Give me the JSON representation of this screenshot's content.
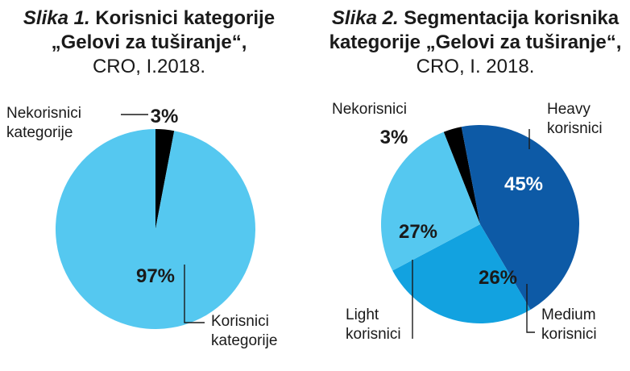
{
  "chart_data": [
    {
      "type": "pie",
      "title_italic": "Slika 1.",
      "title": "Korisnici kategorije",
      "title_line2": "„Gelovi za tuširanje“,",
      "subtitle": "CRO, I.2018.",
      "slices": [
        {
          "label": "Nekorisnici kategorije",
          "value": 3,
          "value_label": "3%",
          "color": "#000000",
          "text_color": "#1a1a1a"
        },
        {
          "label": "Korisnici kategorije",
          "value": 97,
          "value_label": "97%",
          "color": "#55c8f0",
          "text_color": "#1a1a1a"
        }
      ]
    },
    {
      "type": "pie",
      "title_italic": "Slika 2.",
      "title": "Segmentacija korisnika",
      "title_line2": "kategorije „Gelovi za tuširanje“,",
      "subtitle": "CRO, I. 2018.",
      "slices": [
        {
          "label": "Nekorisnici",
          "value": 3,
          "value_label": "3%",
          "color": "#000000",
          "text_color": "#1a1a1a"
        },
        {
          "label": "Heavy korisnici",
          "value": 45,
          "value_label": "45%",
          "color": "#0d5aa6",
          "text_color": "#ffffff"
        },
        {
          "label": "Medium korisnici",
          "value": 26,
          "value_label": "26%",
          "color": "#12a2e0",
          "text_color": "#1a1a1a"
        },
        {
          "label": "Light korisnici",
          "value": 27,
          "value_label": "27%",
          "color": "#55c8f0",
          "text_color": "#1a1a1a"
        }
      ]
    }
  ]
}
